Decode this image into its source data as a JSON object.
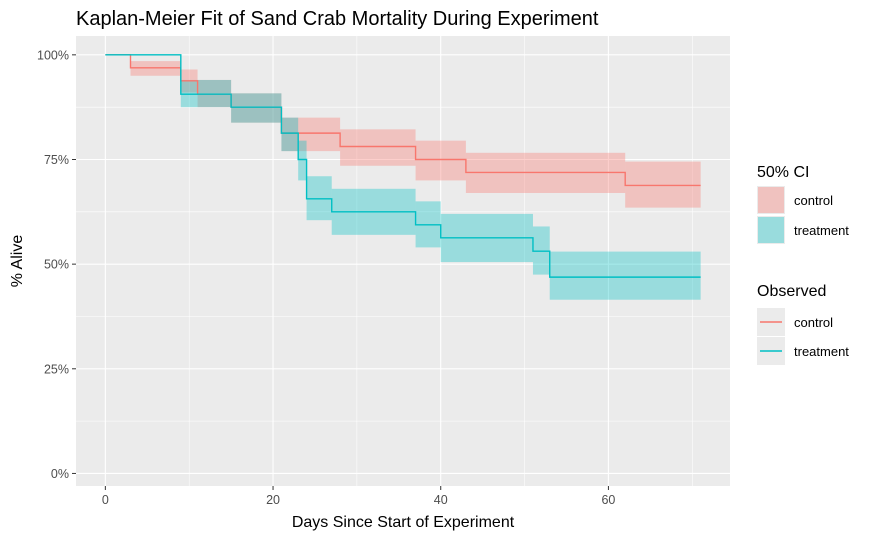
{
  "chart_data": {
    "type": "line",
    "title": "Kaplan-Meier Fit of Sand Crab Mortality During Experiment",
    "xlabel": "Days Since Start of Experiment",
    "ylabel": "% Alive",
    "xlim": [
      -3.5,
      74.5
    ],
    "ylim": [
      -0.03,
      1.045
    ],
    "x_ticks": [
      0,
      20,
      40,
      60
    ],
    "x_tick_labels": [
      "0",
      "20",
      "40",
      "60"
    ],
    "y_ticks": [
      0,
      0.25,
      0.5,
      0.75,
      1.0
    ],
    "y_tick_labels": [
      "0%",
      "25%",
      "50%",
      "75%",
      "100%"
    ],
    "grid": true,
    "legend_position": "right",
    "legend": {
      "ci_title": "50% CI",
      "observed_title": "Observed",
      "entries": [
        "control",
        "treatment"
      ]
    },
    "series": [
      {
        "name": "control",
        "color": "#F8766D",
        "steps": [
          {
            "x": 0,
            "y": 1.0,
            "lo": 1.0,
            "hi": 1.0
          },
          {
            "x": 3,
            "y": 0.969,
            "lo": 0.95,
            "hi": 0.985
          },
          {
            "x": 9,
            "y": 0.938,
            "lo": 0.91,
            "hi": 0.965
          },
          {
            "x": 11,
            "y": 0.906,
            "lo": 0.875,
            "hi": 0.94
          },
          {
            "x": 15,
            "y": 0.875,
            "lo": 0.838,
            "hi": 0.908
          },
          {
            "x": 21,
            "y": 0.813,
            "lo": 0.77,
            "hi": 0.85
          },
          {
            "x": 23,
            "y": 0.813,
            "lo": 0.77,
            "hi": 0.85
          },
          {
            "x": 28,
            "y": 0.781,
            "lo": 0.735,
            "hi": 0.822
          },
          {
            "x": 37,
            "y": 0.75,
            "lo": 0.7,
            "hi": 0.795
          },
          {
            "x": 43,
            "y": 0.719,
            "lo": 0.67,
            "hi": 0.766
          },
          {
            "x": 62,
            "y": 0.688,
            "lo": 0.635,
            "hi": 0.745
          },
          {
            "x": 71,
            "y": 0.688,
            "lo": 0.635,
            "hi": 0.745
          }
        ]
      },
      {
        "name": "treatment",
        "color": "#00BFC4",
        "steps": [
          {
            "x": 0,
            "y": 1.0,
            "lo": 1.0,
            "hi": 1.0
          },
          {
            "x": 9,
            "y": 0.906,
            "lo": 0.875,
            "hi": 0.94
          },
          {
            "x": 15,
            "y": 0.875,
            "lo": 0.838,
            "hi": 0.908
          },
          {
            "x": 21,
            "y": 0.813,
            "lo": 0.77,
            "hi": 0.85
          },
          {
            "x": 23,
            "y": 0.75,
            "lo": 0.7,
            "hi": 0.795
          },
          {
            "x": 24,
            "y": 0.656,
            "lo": 0.605,
            "hi": 0.71
          },
          {
            "x": 27,
            "y": 0.625,
            "lo": 0.57,
            "hi": 0.68
          },
          {
            "x": 37,
            "y": 0.594,
            "lo": 0.54,
            "hi": 0.65
          },
          {
            "x": 40,
            "y": 0.563,
            "lo": 0.505,
            "hi": 0.62
          },
          {
            "x": 51,
            "y": 0.531,
            "lo": 0.475,
            "hi": 0.59
          },
          {
            "x": 53,
            "y": 0.469,
            "lo": 0.415,
            "hi": 0.53
          },
          {
            "x": 71,
            "y": 0.469,
            "lo": 0.415,
            "hi": 0.53
          }
        ]
      }
    ]
  }
}
